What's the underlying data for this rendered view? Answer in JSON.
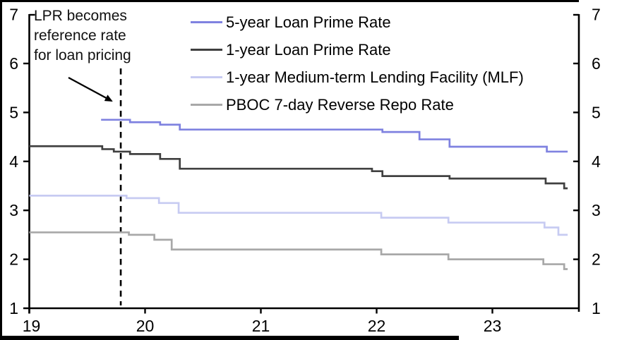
{
  "annotation": {
    "text": "LPR becomes\nreference rate\nfor loan pricing",
    "event_year": 19.79
  },
  "chart_data": {
    "type": "line",
    "line_style": "step-after",
    "title": "",
    "xlabel": "",
    "ylabel": "",
    "grid": false,
    "xlim": [
      19,
      23.75
    ],
    "ylim": [
      1,
      7
    ],
    "x_ticks": [
      19,
      20,
      21,
      22,
      23
    ],
    "y_ticks": [
      1,
      2,
      3,
      4,
      5,
      6,
      7
    ],
    "right_axis_mirror": true,
    "legend_position": "top-inside",
    "series": [
      {
        "id": "5y-lpr",
        "name": "5-year Loan Prime Rate",
        "color": "#7f82e0",
        "points": [
          [
            19.62,
            4.85
          ],
          [
            19.87,
            4.8
          ],
          [
            20.13,
            4.75
          ],
          [
            20.3,
            4.65
          ],
          [
            22.05,
            4.6
          ],
          [
            22.37,
            4.45
          ],
          [
            22.63,
            4.3
          ],
          [
            23.47,
            4.2
          ],
          [
            23.65,
            4.2
          ]
        ]
      },
      {
        "id": "1y-lpr",
        "name": "1-year Loan Prime Rate",
        "color": "#404040",
        "points": [
          [
            19.0,
            4.31
          ],
          [
            19.63,
            4.25
          ],
          [
            19.73,
            4.2
          ],
          [
            19.87,
            4.15
          ],
          [
            20.13,
            4.05
          ],
          [
            20.3,
            3.85
          ],
          [
            21.96,
            3.8
          ],
          [
            22.05,
            3.7
          ],
          [
            22.63,
            3.65
          ],
          [
            23.46,
            3.55
          ],
          [
            23.62,
            3.45
          ],
          [
            23.65,
            3.45
          ]
        ]
      },
      {
        "id": "mlf",
        "name": "1-year Medium-term Lending Facility (MLF)",
        "color": "#c7cbf2",
        "points": [
          [
            19.0,
            3.3
          ],
          [
            19.84,
            3.25
          ],
          [
            20.12,
            3.15
          ],
          [
            20.29,
            2.95
          ],
          [
            22.04,
            2.85
          ],
          [
            22.62,
            2.75
          ],
          [
            23.45,
            2.65
          ],
          [
            23.57,
            2.5
          ],
          [
            23.65,
            2.5
          ]
        ]
      },
      {
        "id": "repo",
        "name": "PBOC 7-day Reverse Repo Rate",
        "color": "#a8a8a8",
        "points": [
          [
            19.0,
            2.55
          ],
          [
            19.86,
            2.5
          ],
          [
            20.08,
            2.4
          ],
          [
            20.23,
            2.2
          ],
          [
            22.04,
            2.1
          ],
          [
            22.62,
            2.0
          ],
          [
            23.44,
            1.9
          ],
          [
            23.62,
            1.8
          ],
          [
            23.65,
            1.8
          ]
        ]
      }
    ]
  }
}
